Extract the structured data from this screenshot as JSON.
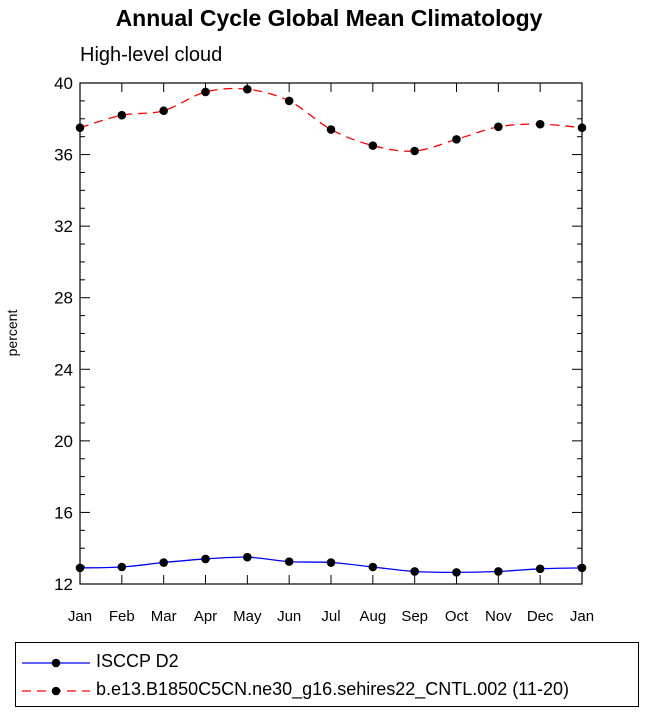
{
  "chart_data": {
    "type": "line",
    "title": "Annual Cycle Global Mean Climatology",
    "subtitle": "High-level cloud",
    "xlabel": "",
    "ylabel": "percent",
    "categories": [
      "Jan",
      "Feb",
      "Mar",
      "Apr",
      "May",
      "Jun",
      "Jul",
      "Aug",
      "Sep",
      "Oct",
      "Nov",
      "Dec",
      "Jan"
    ],
    "ylim": [
      12,
      40
    ],
    "yticks": [
      12,
      16,
      20,
      24,
      28,
      32,
      36,
      40
    ],
    "yticklabels": [
      "12",
      "16",
      "20",
      "24",
      "28",
      "32",
      "36",
      "40"
    ],
    "grid": false,
    "legend_position": "bottom",
    "series": [
      {
        "name": "ISCCP D2",
        "color": "#0000ff",
        "line_style": "solid",
        "marker": "filled-circle",
        "values": [
          12.9,
          12.95,
          13.2,
          13.4,
          13.5,
          13.25,
          13.2,
          12.95,
          12.7,
          12.65,
          12.7,
          12.85,
          12.9
        ]
      },
      {
        "name": "b.e13.B1850C5CN.ne30_g16.sehires22_CNTL.002 (11-20)",
        "color": "#ff0000",
        "line_style": "dashed",
        "marker": "filled-circle",
        "values": [
          37.5,
          38.2,
          38.45,
          39.5,
          39.65,
          39.0,
          37.4,
          36.5,
          36.2,
          36.85,
          37.55,
          37.7,
          37.5
        ]
      }
    ]
  }
}
